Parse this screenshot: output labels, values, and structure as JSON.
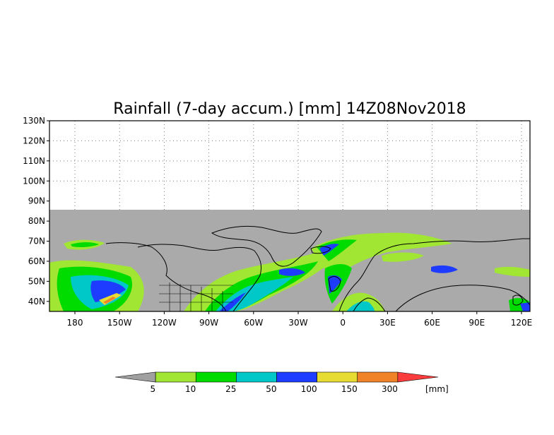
{
  "title": "Rainfall (7-day accum.) [mm] 14Z08Nov2018",
  "lat_labels": [
    "130N",
    "120N",
    "110N",
    "100N",
    "90N",
    "80N",
    "70N",
    "60N",
    "50N",
    "40N"
  ],
  "lon_labels": [
    "180",
    "150W",
    "120W",
    "90W",
    "60W",
    "30W",
    "0",
    "30E",
    "60E",
    "90E",
    "120E"
  ],
  "colorbar": {
    "ticks": [
      "5",
      "10",
      "25",
      "50",
      "100",
      "150",
      "300"
    ],
    "units": "[mm]",
    "colors": [
      "#a0a0a0",
      "#a0e632",
      "#00dc00",
      "#00c8c8",
      "#1e3cff",
      "#e6dc32",
      "#f08228",
      "#fa3c3c"
    ]
  },
  "colors": {
    "no_data": "#aaaaaa",
    "background": "#ffffff",
    "coastline": "#000000"
  }
}
